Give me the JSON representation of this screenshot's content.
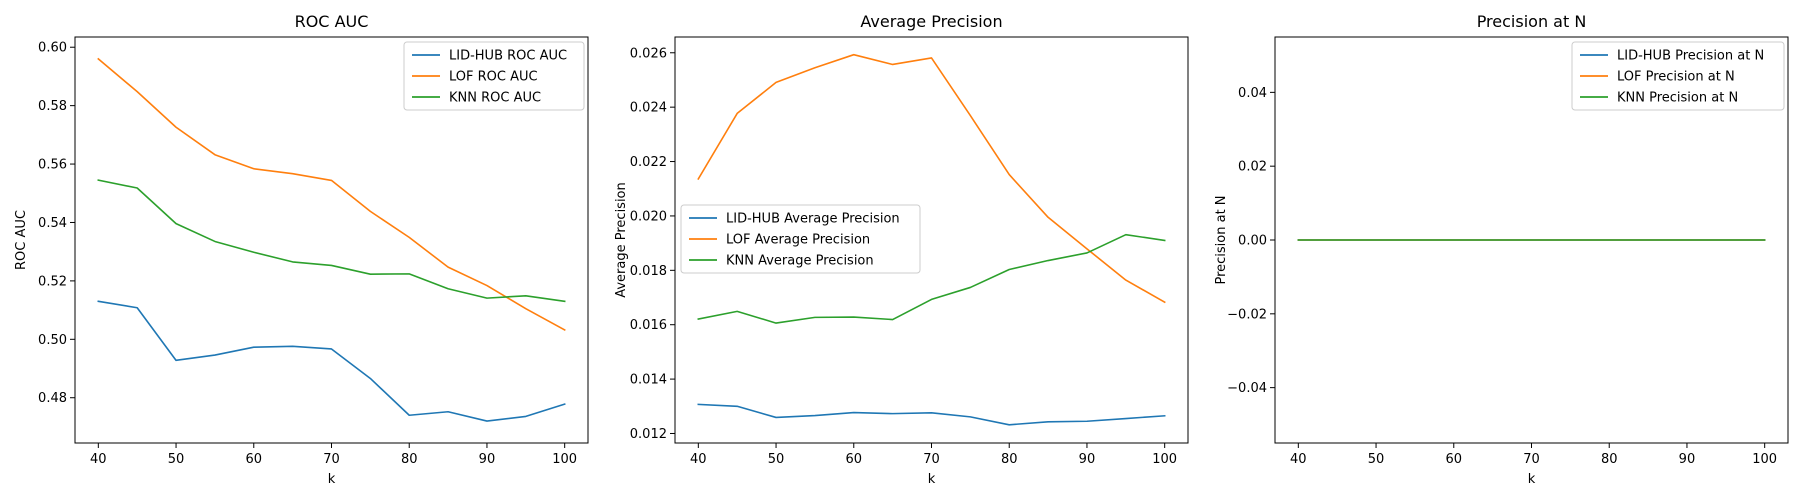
{
  "chart_data": [
    {
      "type": "line",
      "title": "ROC AUC",
      "xlabel": "k",
      "ylabel": "ROC AUC",
      "x": [
        40,
        45,
        50,
        55,
        60,
        65,
        70,
        75,
        80,
        85,
        90,
        95,
        100
      ],
      "xlim": [
        37,
        103
      ],
      "ylim": [
        0.4645,
        0.6035
      ],
      "xticks": [
        40,
        50,
        60,
        70,
        80,
        90,
        100
      ],
      "xtick_labels": [
        "40",
        "50",
        "60",
        "70",
        "80",
        "90",
        "100"
      ],
      "yticks": [
        0.48,
        0.5,
        0.52,
        0.54,
        0.56,
        0.58,
        0.6
      ],
      "ytick_labels": [
        "0.48",
        "0.50",
        "0.52",
        "0.54",
        "0.56",
        "0.58",
        "0.60"
      ],
      "legend_loc": "upper right",
      "series": [
        {
          "name": "LID-HUB ROC AUC",
          "color": "#1f77b4",
          "values": [
            0.513,
            0.5108,
            0.4928,
            0.4946,
            0.4973,
            0.4976,
            0.4967,
            0.4866,
            0.474,
            0.4752,
            0.472,
            0.4736,
            0.4778
          ]
        },
        {
          "name": "LOF ROC AUC",
          "color": "#ff7f0e",
          "values": [
            0.596,
            0.5848,
            0.5726,
            0.5632,
            0.5584,
            0.5567,
            0.5544,
            0.5438,
            0.5349,
            0.5247,
            0.5184,
            0.5105,
            0.5032
          ]
        },
        {
          "name": "KNN ROC AUC",
          "color": "#2ca02c",
          "values": [
            0.5545,
            0.5518,
            0.5396,
            0.5335,
            0.5298,
            0.5265,
            0.5253,
            0.5223,
            0.5224,
            0.5173,
            0.5141,
            0.5149,
            0.513
          ]
        }
      ]
    },
    {
      "type": "line",
      "title": "Average Precision",
      "xlabel": "k",
      "ylabel": "Average Precision",
      "x": [
        40,
        45,
        50,
        55,
        60,
        65,
        70,
        75,
        80,
        85,
        90,
        95,
        100
      ],
      "xlim": [
        37,
        103
      ],
      "ylim": [
        0.01165,
        0.02658
      ],
      "xticks": [
        40,
        50,
        60,
        70,
        80,
        90,
        100
      ],
      "xtick_labels": [
        "40",
        "50",
        "60",
        "70",
        "80",
        "90",
        "100"
      ],
      "yticks": [
        0.012,
        0.014,
        0.016,
        0.018,
        0.02,
        0.022,
        0.024,
        0.026
      ],
      "ytick_labels": [
        "0.012",
        "0.014",
        "0.016",
        "0.018",
        "0.020",
        "0.022",
        "0.024",
        "0.026"
      ],
      "legend_loc": "center left",
      "series": [
        {
          "name": "LID-HUB Average Precision",
          "color": "#1f77b4",
          "values": [
            0.01307,
            0.013,
            0.01259,
            0.01266,
            0.01277,
            0.01273,
            0.01276,
            0.01261,
            0.01232,
            0.01243,
            0.01245,
            0.01255,
            0.01265
          ]
        },
        {
          "name": "LOF Average Precision",
          "color": "#ff7f0e",
          "values": [
            0.02136,
            0.02377,
            0.02491,
            0.02545,
            0.02593,
            0.02557,
            0.02581,
            0.02369,
            0.02152,
            0.01995,
            0.01879,
            0.01764,
            0.01683
          ]
        },
        {
          "name": "KNN Average Precision",
          "color": "#2ca02c",
          "values": [
            0.01621,
            0.01649,
            0.01606,
            0.01627,
            0.01628,
            0.01619,
            0.01693,
            0.01737,
            0.01803,
            0.01836,
            0.01864,
            0.01931,
            0.0191
          ]
        }
      ]
    },
    {
      "type": "line",
      "title": "Precision at N",
      "xlabel": "k",
      "ylabel": "Precision at N",
      "x": [
        40,
        45,
        50,
        55,
        60,
        65,
        70,
        75,
        80,
        85,
        90,
        95,
        100
      ],
      "xlim": [
        37,
        103
      ],
      "ylim": [
        -0.055,
        0.055
      ],
      "xticks": [
        40,
        50,
        60,
        70,
        80,
        90,
        100
      ],
      "xtick_labels": [
        "40",
        "50",
        "60",
        "70",
        "80",
        "90",
        "100"
      ],
      "yticks": [
        -0.04,
        -0.02,
        0.0,
        0.02,
        0.04
      ],
      "ytick_labels": [
        "−0.04",
        "−0.02",
        "0.00",
        "0.02",
        "0.04"
      ],
      "legend_loc": "upper right",
      "series": [
        {
          "name": "LID-HUB Precision at N",
          "color": "#1f77b4",
          "values": [
            0,
            0,
            0,
            0,
            0,
            0,
            0,
            0,
            0,
            0,
            0,
            0,
            0
          ]
        },
        {
          "name": "LOF Precision at N",
          "color": "#ff7f0e",
          "values": [
            0,
            0,
            0,
            0,
            0,
            0,
            0,
            0,
            0,
            0,
            0,
            0,
            0
          ]
        },
        {
          "name": "KNN Precision at N",
          "color": "#2ca02c",
          "values": [
            0,
            0,
            0,
            0,
            0,
            0,
            0,
            0,
            0,
            0,
            0,
            0,
            0
          ]
        }
      ]
    }
  ]
}
